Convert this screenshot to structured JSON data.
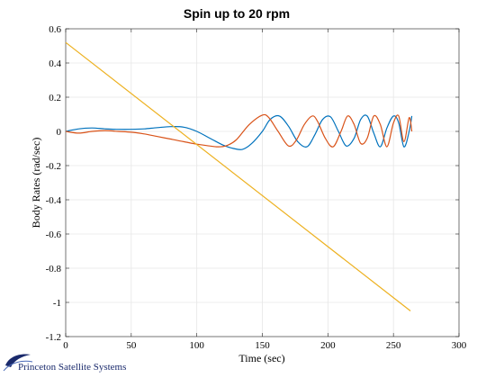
{
  "chart_data": {
    "type": "line",
    "title": "Spin up to 20 rpm",
    "xlabel": "Time (sec)",
    "ylabel": "Body Rates (rad/sec)",
    "xlim": [
      0,
      300
    ],
    "ylim": [
      -1.2,
      0.6
    ],
    "xticks": [
      0,
      50,
      100,
      150,
      200,
      250,
      300
    ],
    "yticks": [
      -1.2,
      -1,
      -0.8,
      -0.6,
      -0.4,
      -0.2,
      0,
      0.2,
      0.4,
      0.6
    ],
    "grid": true,
    "colors": {
      "blue": "#0072BD",
      "orange": "#D95319",
      "yellow": "#EDB120"
    },
    "series": [
      {
        "color": "#0072BD",
        "x": [
          0,
          10,
          20,
          30,
          40,
          50,
          60,
          70,
          80,
          90,
          100,
          110,
          120,
          128,
          135,
          142,
          150,
          156,
          163,
          170,
          177,
          184,
          190,
          196,
          202,
          208,
          214,
          220,
          225,
          230,
          235,
          240,
          245,
          250,
          254,
          258,
          262,
          264
        ],
        "y": [
          0,
          0.015,
          0.02,
          0.015,
          0.012,
          0.012,
          0.015,
          0.022,
          0.028,
          0.025,
          0.0,
          -0.04,
          -0.08,
          -0.1,
          -0.105,
          -0.07,
          0.0,
          0.07,
          0.09,
          0.03,
          -0.06,
          -0.09,
          -0.02,
          0.07,
          0.085,
          0.0,
          -0.085,
          -0.04,
          0.07,
          0.09,
          -0.01,
          -0.09,
          0.02,
          0.09,
          0.05,
          -0.09,
          0.0,
          0.09
        ]
      },
      {
        "color": "#D95319",
        "x": [
          0,
          10,
          20,
          30,
          40,
          50,
          60,
          70,
          80,
          90,
          100,
          110,
          115,
          122,
          130,
          140,
          150,
          155,
          162,
          170,
          176,
          182,
          188,
          192,
          198,
          204,
          210,
          215,
          220,
          225,
          230,
          235,
          240,
          245,
          250,
          254,
          258,
          262,
          264
        ],
        "y": [
          0,
          -0.01,
          0.0,
          0.005,
          0.0,
          -0.005,
          -0.015,
          -0.03,
          -0.045,
          -0.06,
          -0.075,
          -0.085,
          -0.09,
          -0.085,
          -0.05,
          0.04,
          0.095,
          0.08,
          0.0,
          -0.085,
          -0.05,
          0.04,
          0.09,
          0.06,
          -0.04,
          -0.09,
          0.0,
          0.09,
          0.04,
          -0.07,
          -0.04,
          0.09,
          0.04,
          -0.09,
          0.05,
          0.09,
          -0.06,
          0.08,
          0.0
        ]
      },
      {
        "color": "#EDB120",
        "x": [
          0,
          263
        ],
        "y": [
          0.52,
          -1.05
        ]
      }
    ]
  },
  "logo": {
    "text": "Princeton Satellite Systems",
    "color": "#1a2a6c"
  }
}
